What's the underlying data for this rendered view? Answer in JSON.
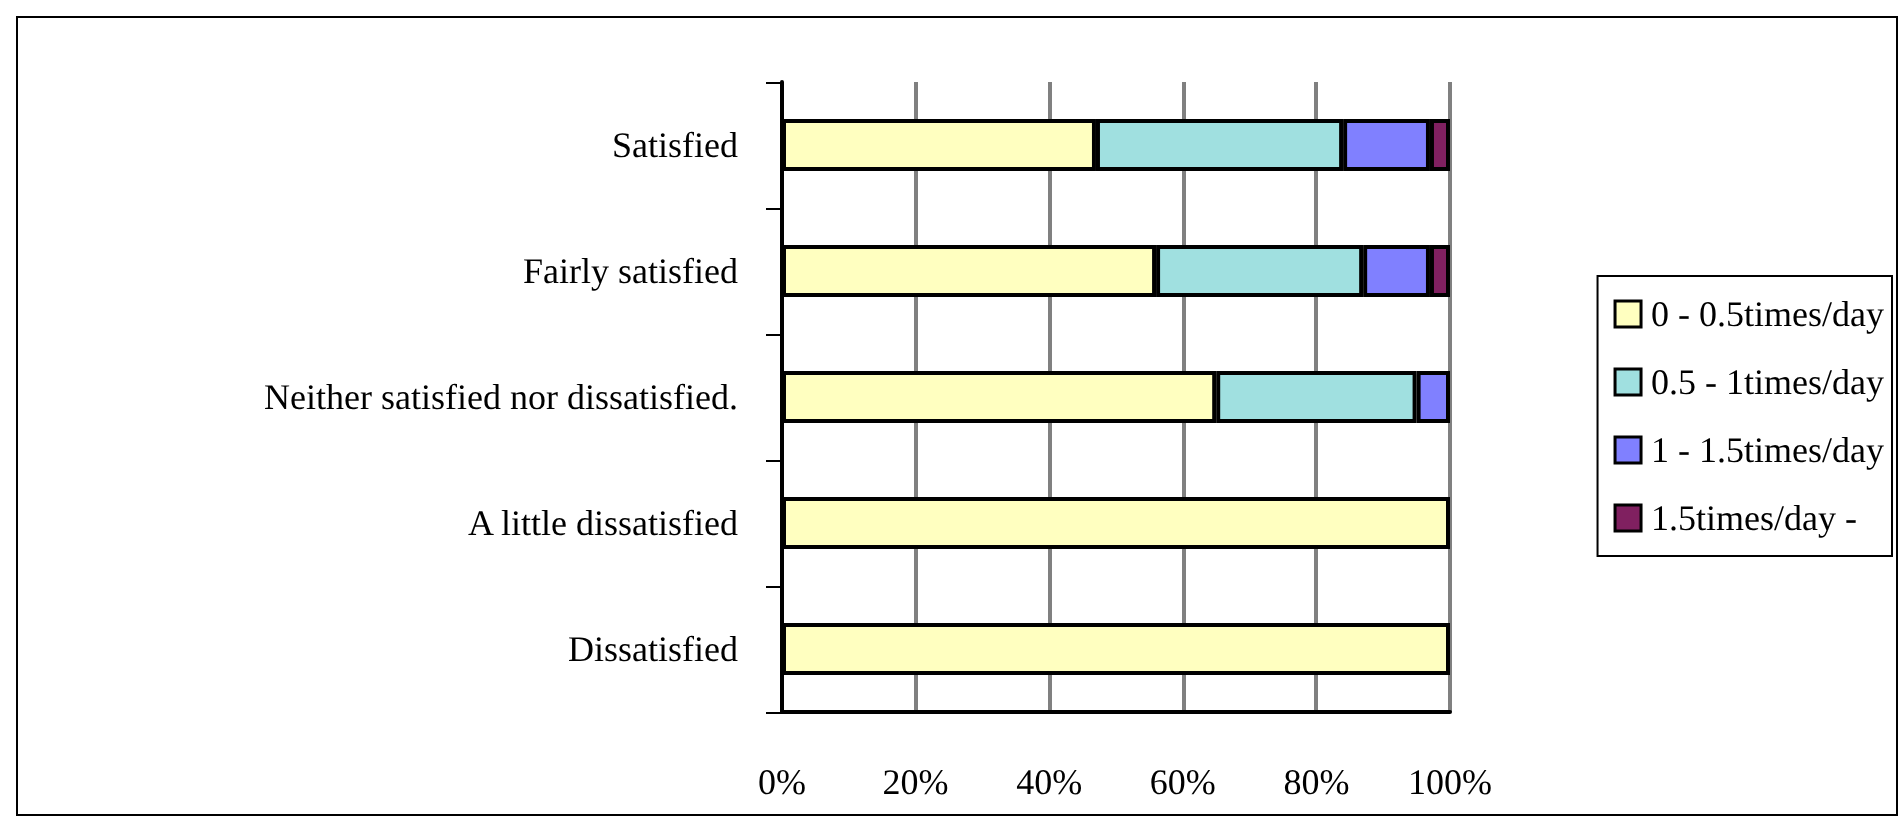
{
  "chart_data": {
    "type": "bar",
    "orientation": "horizontal",
    "stacked": true,
    "categories": [
      "Satisfied",
      "Fairly satisfied",
      "Neither satisfied nor dissatisfied.",
      "A little dissatisfied",
      "Dissatisfied"
    ],
    "series": [
      {
        "name": "0 - 0.5times/day",
        "color": "#ffffc0",
        "values": [
          47,
          56,
          65,
          100,
          100
        ]
      },
      {
        "name": "0.5 - 1times/day",
        "color": "#a0e0e0",
        "values": [
          37,
          31,
          30,
          0,
          0
        ]
      },
      {
        "name": "1 - 1.5times/day",
        "color": "#8080ff",
        "values": [
          13,
          10,
          5,
          0,
          0
        ]
      },
      {
        "name": "1.5times/day -",
        "color": "#802060",
        "values": [
          3,
          3,
          0,
          0,
          0
        ]
      }
    ],
    "xlim": [
      0,
      100
    ],
    "xticks": [
      {
        "value": 0,
        "label": "0%"
      },
      {
        "value": 20,
        "label": "20%"
      },
      {
        "value": 40,
        "label": "40%"
      },
      {
        "value": 60,
        "label": "60%"
      },
      {
        "value": 80,
        "label": "80%"
      },
      {
        "value": 100,
        "label": "100%"
      }
    ],
    "grid": "x",
    "legend": "right"
  }
}
